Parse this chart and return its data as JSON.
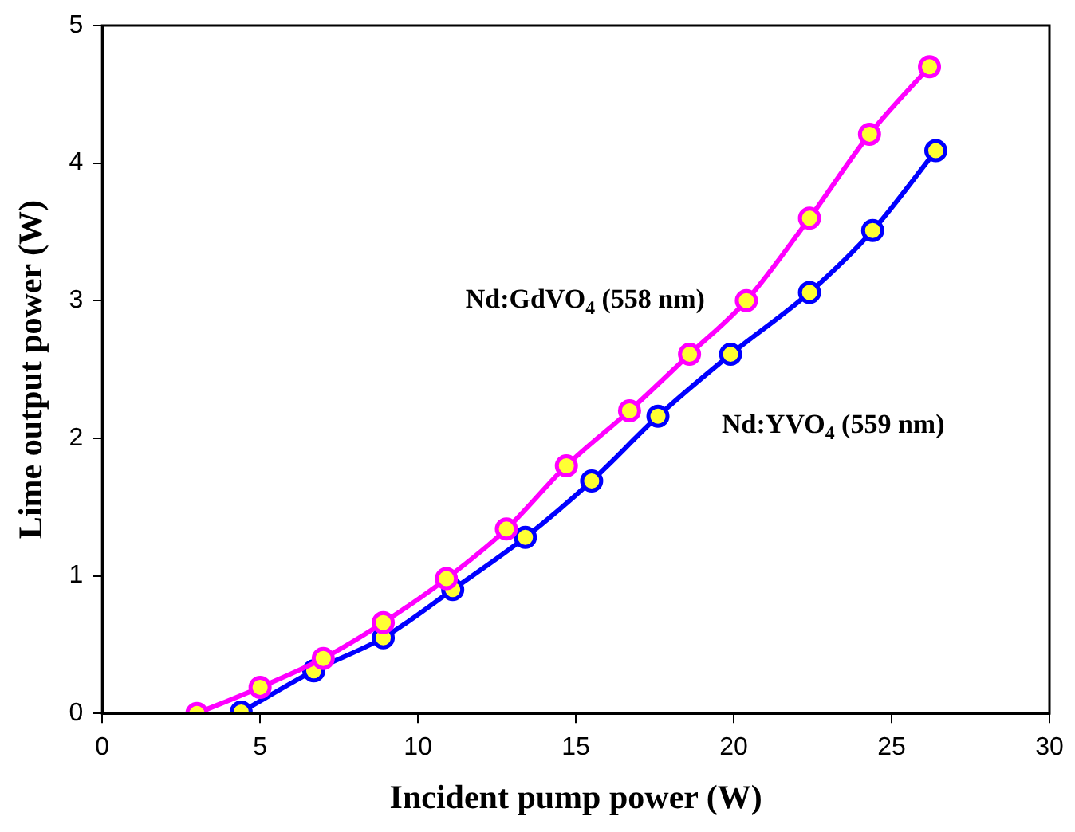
{
  "chart_data": {
    "type": "line",
    "xlabel": "Incident pump power (W)",
    "ylabel": "Lime output power (W)",
    "xlim": [
      0,
      30
    ],
    "xticks": [
      0,
      5,
      10,
      15,
      20,
      25,
      30
    ],
    "ylim": [
      0,
      5
    ],
    "yticks": [
      0,
      1,
      2,
      3,
      4,
      5
    ],
    "grid": false,
    "legend": false,
    "marker": "circle",
    "line_style": "solid",
    "series": [
      {
        "name": "Nd:GdVO$_{4}$ (558 nm)",
        "color": "#ff00ff",
        "x": [
          3.0,
          5.0,
          7.0,
          8.9,
          10.9,
          12.8,
          14.7,
          16.7,
          18.6,
          20.4,
          22.4,
          24.3,
          26.2
        ],
        "values": [
          0,
          0.19,
          0.4,
          0.66,
          0.98,
          1.34,
          1.8,
          2.2,
          2.61,
          3.0,
          3.6,
          4.21,
          4.7
        ]
      },
      {
        "name": "Nd:YVO$_{4}$ (559 nm)",
        "color": "#0000ff",
        "x": [
          4.4,
          6.7,
          8.9,
          11.1,
          13.4,
          15.5,
          17.6,
          19.9,
          22.4,
          24.4,
          26.4
        ],
        "values": [
          0.01,
          0.31,
          0.55,
          0.9,
          1.28,
          1.69,
          2.16,
          2.61,
          3.06,
          3.51,
          4.09
        ]
      }
    ]
  }
}
